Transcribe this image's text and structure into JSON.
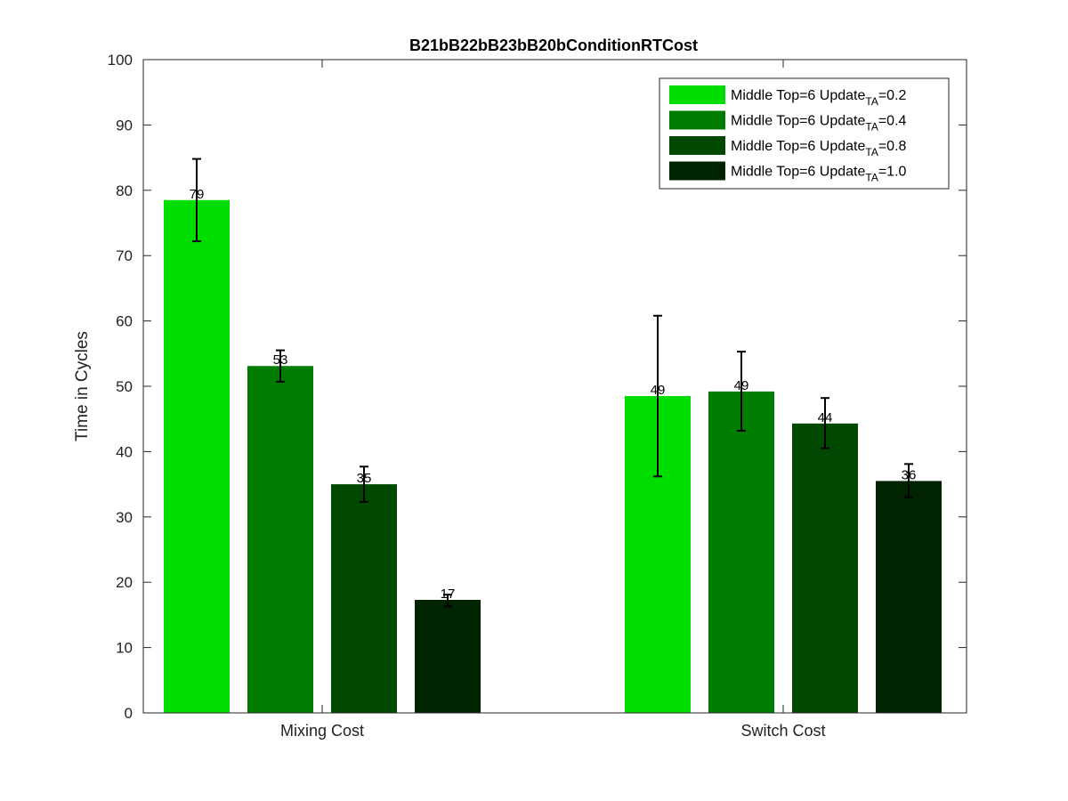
{
  "chart_data": {
    "type": "bar",
    "title": "B21bB22bB23bB20bConditionRTCost",
    "xlabel": "",
    "ylabel": "Time in Cycles",
    "ylim": [
      0,
      100
    ],
    "yticks": [
      0,
      10,
      20,
      30,
      40,
      50,
      60,
      70,
      80,
      90,
      100
    ],
    "categories": [
      "Mixing Cost",
      "Switch Cost"
    ],
    "grid": false,
    "legend_position": "top-right",
    "series": [
      {
        "name": "Middle Top=6 Update_TA=0.2",
        "legend_main": "Middle Top=6 Update",
        "legend_sub": "TA",
        "legend_tail": "=0.2",
        "color": "#00dd00",
        "values": [
          78.5,
          48.5
        ],
        "labels": [
          "79",
          "49"
        ],
        "err_low": [
          72.2,
          36.2
        ],
        "err_high": [
          84.8,
          60.8
        ]
      },
      {
        "name": "Middle Top=6 Update_TA=0.4",
        "legend_main": "Middle Top=6 Update",
        "legend_sub": "TA",
        "legend_tail": "=0.4",
        "color": "#007d00",
        "values": [
          53.1,
          49.2
        ],
        "labels": [
          "53",
          "49"
        ],
        "err_low": [
          50.7,
          43.2
        ],
        "err_high": [
          55.5,
          55.3
        ]
      },
      {
        "name": "Middle Top=6 Update_TA=0.8",
        "legend_main": "Middle Top=6 Update",
        "legend_sub": "TA",
        "legend_tail": "=0.8",
        "color": "#004700",
        "values": [
          35.0,
          44.3
        ],
        "labels": [
          "35",
          "44"
        ],
        "err_low": [
          32.3,
          40.5
        ],
        "err_high": [
          37.7,
          48.2
        ]
      },
      {
        "name": "Middle Top=6 Update_TA=1.0",
        "legend_main": "Middle Top=6 Update",
        "legend_sub": "TA",
        "legend_tail": "=1.0",
        "color": "#002400",
        "values": [
          17.3,
          35.5
        ],
        "labels": [
          "17",
          "36"
        ],
        "err_low": [
          16.3,
          33.0
        ],
        "err_high": [
          18.1,
          38.1
        ]
      }
    ]
  }
}
